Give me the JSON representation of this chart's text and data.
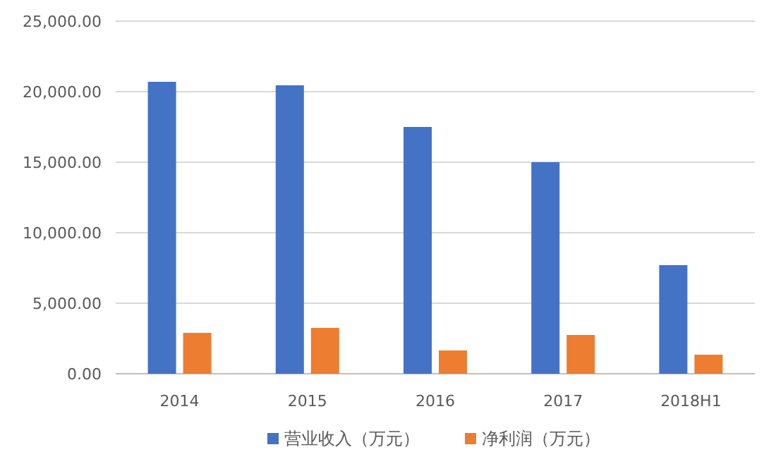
{
  "chart_data": {
    "type": "bar",
    "categories": [
      "2014",
      "2015",
      "2016",
      "2017",
      "2018H1"
    ],
    "series": [
      {
        "name": "营业收入（万元）",
        "color": "#4472c4",
        "values": [
          20700,
          20450,
          17500,
          15000,
          7700
        ]
      },
      {
        "name": "净利润（万元）",
        "color": "#ed7d31",
        "values": [
          2900,
          3250,
          1650,
          2750,
          1350
        ]
      }
    ],
    "ylim": [
      0,
      25000
    ],
    "yticks": [
      {
        "value": 0,
        "label": "0.00"
      },
      {
        "value": 5000,
        "label": "5,000.00"
      },
      {
        "value": 10000,
        "label": "10,000.00"
      },
      {
        "value": 15000,
        "label": "15,000.00"
      },
      {
        "value": 20000,
        "label": "20,000.00"
      },
      {
        "value": 25000,
        "label": "25,000.00"
      }
    ],
    "grid": "y",
    "legend": "bottom"
  }
}
